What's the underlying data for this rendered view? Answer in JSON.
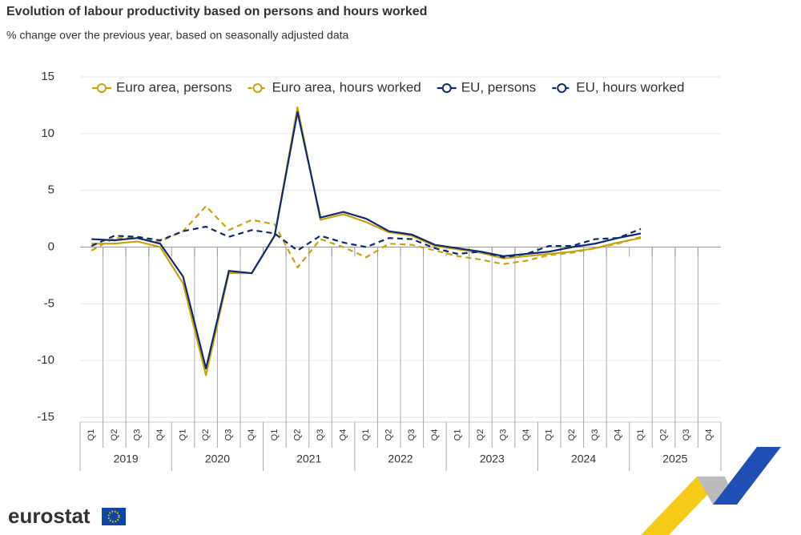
{
  "chart_data": {
    "type": "line",
    "title": "Evolution of labour productivity based on persons and hours worked",
    "subtitle": "% change over the previous year, based on seasonally adjusted data",
    "categories": [
      "Q1",
      "Q2",
      "Q3",
      "Q4",
      "Q1",
      "Q2",
      "Q3",
      "Q4",
      "Q1",
      "Q2",
      "Q3",
      "Q4",
      "Q1",
      "Q2",
      "Q3",
      "Q4",
      "Q1",
      "Q2",
      "Q3",
      "Q4",
      "Q1",
      "Q2",
      "Q3",
      "Q4",
      "Q1",
      "Q2",
      "Q3",
      "Q4"
    ],
    "years": [
      "2019",
      "2020",
      "2021",
      "2022",
      "2023",
      "2024",
      "2025"
    ],
    "series": [
      {
        "name": "Euro area, persons",
        "color": "#c9a30f",
        "style": "solid",
        "values": [
          0.3,
          0.3,
          0.5,
          0.0,
          -3.2,
          -11.3,
          -2.3,
          -2.3,
          1.0,
          12.3,
          2.4,
          2.9,
          2.2,
          1.3,
          1.0,
          0.1,
          -0.2,
          -0.5,
          -1.0,
          -0.8,
          -0.6,
          -0.4,
          -0.1,
          0.4,
          0.8,
          null,
          null,
          null
        ]
      },
      {
        "name": "Euro area, hours worked",
        "color": "#c9a30f",
        "style": "dashed",
        "values": [
          -0.3,
          0.8,
          0.8,
          0.5,
          1.4,
          3.6,
          1.5,
          2.4,
          2.0,
          -1.8,
          0.7,
          0.0,
          -0.9,
          0.3,
          0.2,
          -0.3,
          -0.8,
          -1.1,
          -1.5,
          -1.2,
          -0.7,
          -0.5,
          -0.1,
          0.3,
          0.9,
          null,
          null,
          null
        ]
      },
      {
        "name": "EU, persons",
        "color": "#0e2a6e",
        "style": "solid",
        "values": [
          0.7,
          0.6,
          0.8,
          0.3,
          -2.6,
          -10.7,
          -2.1,
          -2.3,
          1.0,
          11.9,
          2.6,
          3.1,
          2.5,
          1.4,
          1.1,
          0.2,
          -0.1,
          -0.4,
          -0.8,
          -0.6,
          -0.4,
          0.0,
          0.3,
          0.8,
          1.2,
          null,
          null,
          null
        ]
      },
      {
        "name": "EU, hours worked",
        "color": "#0e2a6e",
        "style": "dashed",
        "values": [
          0.1,
          1.0,
          0.9,
          0.6,
          1.4,
          1.8,
          0.9,
          1.5,
          1.2,
          -0.3,
          1.0,
          0.4,
          0.0,
          0.8,
          0.7,
          -0.1,
          -0.6,
          -0.4,
          -0.9,
          -0.6,
          0.1,
          0.1,
          0.7,
          0.8,
          1.6,
          null,
          null,
          null
        ]
      }
    ],
    "ylim": [
      -15,
      15
    ],
    "yticks": [
      -15,
      -10,
      -5,
      0,
      5,
      10,
      15
    ],
    "grid": true
  },
  "logo": {
    "text": "eurostat"
  }
}
